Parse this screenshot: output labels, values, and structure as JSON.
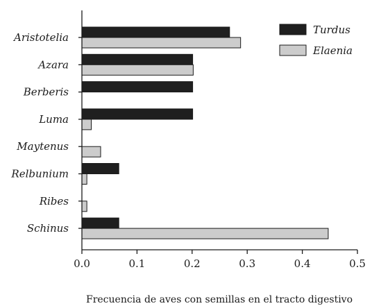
{
  "chart_data": {
    "type": "bar",
    "orientation": "horizontal",
    "title": "",
    "xlabel": "Frecuencia de aves con semillas en el tracto digestivo",
    "ylabel": "",
    "xlim": [
      0,
      0.5
    ],
    "xticks": [
      0.0,
      0.1,
      0.2,
      0.3,
      0.4,
      0.5
    ],
    "xtick_labels": [
      "0.0",
      "0.1",
      "0.2",
      "0.3",
      "0.4",
      "0.5"
    ],
    "categories": [
      "Aristotelia",
      "Azara",
      "Berberis",
      "Luma",
      "Maytenus",
      "Relbunium",
      "Ribes",
      "Schinus"
    ],
    "series": [
      {
        "name": "Turdus",
        "color": "#1f1f1f",
        "values": [
          0.268,
          0.201,
          0.201,
          0.201,
          0.0,
          0.067,
          0.0,
          0.067
        ]
      },
      {
        "name": "Elaenia",
        "color": "#cccccc",
        "values": [
          0.288,
          0.202,
          0.0,
          0.017,
          0.034,
          0.009,
          0.009,
          0.447
        ]
      }
    ],
    "legend_position": "top-right",
    "grid": false
  }
}
